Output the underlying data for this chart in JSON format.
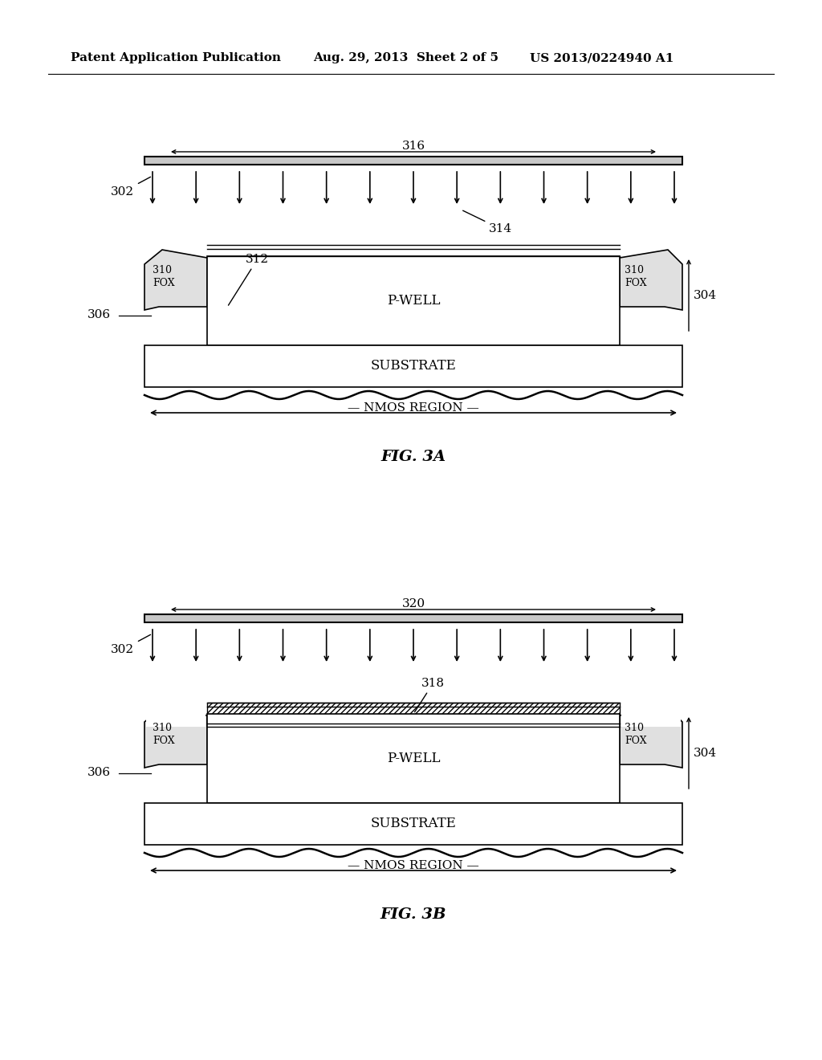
{
  "bg_color": "#ffffff",
  "header_left": "Patent Application Publication",
  "header_mid": "Aug. 29, 2013  Sheet 2 of 5",
  "header_right": "US 2013/0224940 A1",
  "fig3a_label": "FIG. 3A",
  "fig3b_label": "FIG. 3B",
  "label_302": "302",
  "label_304": "304",
  "label_306": "306",
  "label_310_fox": "310\nFOX",
  "label_312": "312",
  "label_p_well": "P-WELL",
  "label_substrate": "SUBSTRATE",
  "label_nmos": "NMOS REGION",
  "label_314": "314",
  "label_316": "316",
  "label_318": "318",
  "label_320": "320"
}
